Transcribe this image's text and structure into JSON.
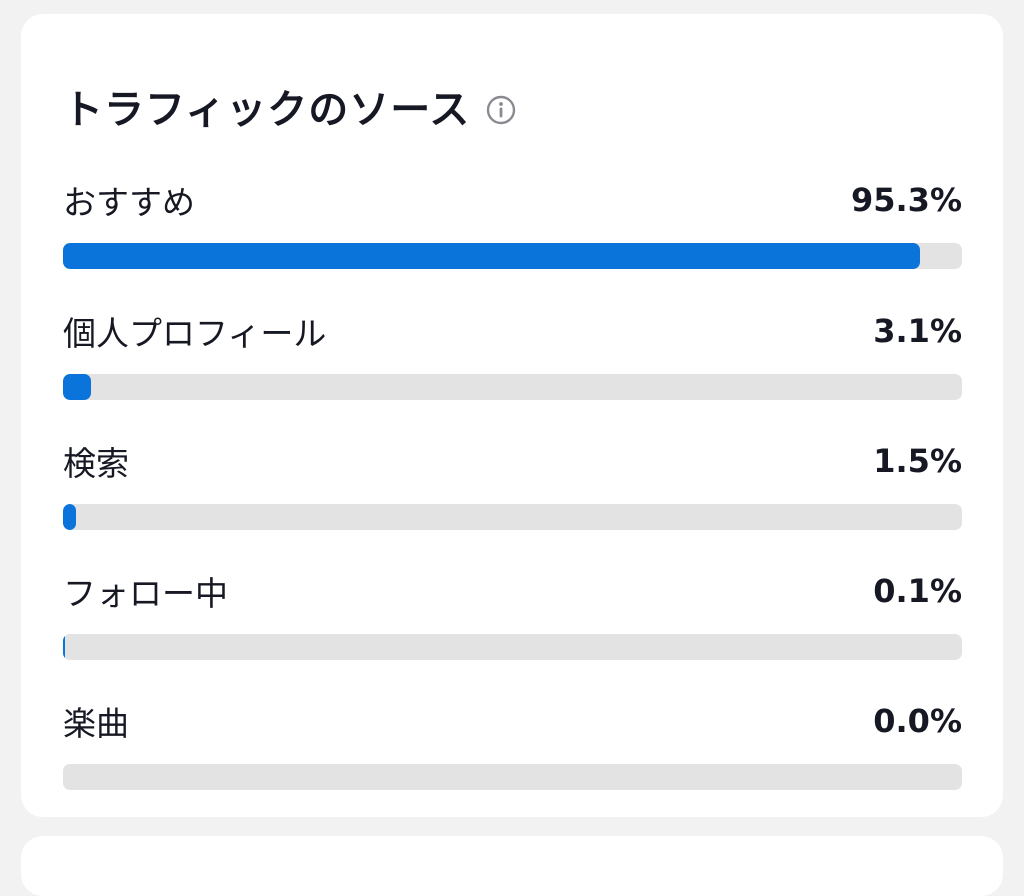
{
  "card": {
    "title": "トラフィックのソース",
    "info_icon": "info-icon"
  },
  "sources": [
    {
      "label": "おすすめ",
      "value_text": "95.3%",
      "fraction": 0.953
    },
    {
      "label": "個人プロフィール",
      "value_text": "3.1%",
      "fraction": 0.031
    },
    {
      "label": "検索",
      "value_text": "1.5%",
      "fraction": 0.015
    },
    {
      "label": "フォロー中",
      "value_text": "0.1%",
      "fraction": 0.001
    },
    {
      "label": "楽曲",
      "value_text": "0.0%",
      "fraction": 0.0
    }
  ],
  "colors": {
    "bar_fill": "#0a74da",
    "bar_track": "#e3e3e4",
    "page_bg": "#f2f2f2",
    "card_bg": "#ffffff"
  }
}
